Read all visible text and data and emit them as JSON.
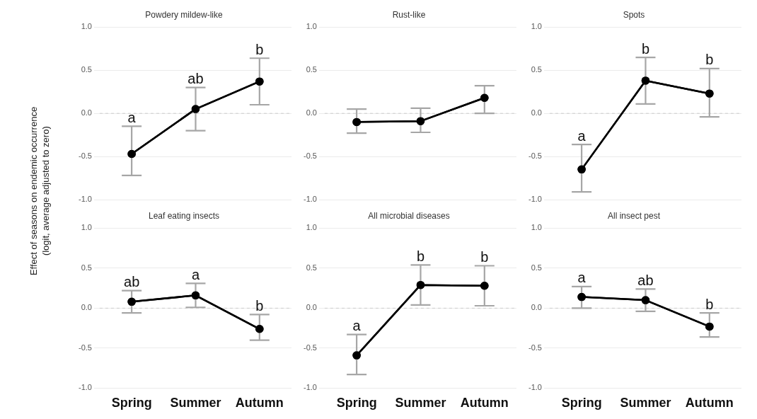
{
  "chart_data": [
    {
      "type": "line",
      "title": "Powdery mildew-like",
      "ylabel": "Effect of seasons on endemic occurrence\n(logit, average adjusted to zero)",
      "categories": [
        "Spring",
        "Summer",
        "Autumn"
      ],
      "series": [
        {
          "color": "#000000",
          "values": [
            -0.47,
            0.05,
            0.37
          ],
          "errors": [
            [
              -0.72,
              -0.15
            ],
            [
              -0.2,
              0.3
            ],
            [
              0.1,
              0.64
            ]
          ]
        }
      ],
      "ylim": [
        -1,
        1
      ],
      "yticks": [
        {
          "value": -1,
          "label": "-1.0"
        },
        {
          "value": -0.5,
          "label": "-0.5"
        },
        {
          "value": 0,
          "label": "0.0"
        },
        {
          "value": 0.5,
          "label": "0.5"
        },
        {
          "value": 1,
          "label": "1.0"
        }
      ],
      "grid": "y",
      "marker": "circle",
      "line_style": "solid",
      "tick_labels": "y",
      "ref_lines": [
        {
          "axis": "y",
          "value": 0,
          "color": "#cccccc",
          "line_style": "dashed"
        }
      ],
      "annotations": [
        {
          "text": "a",
          "x": "Spring",
          "y": -0.47
        },
        {
          "text": "ab",
          "x": "Summer",
          "y": 0.05
        },
        {
          "text": "b",
          "x": "Autumn",
          "y": 0.37
        }
      ]
    },
    {
      "type": "line",
      "title": "Rust-like",
      "categories": [
        "Spring",
        "Summer",
        "Autumn"
      ],
      "series": [
        {
          "color": "#000000",
          "values": [
            -0.1,
            -0.09,
            0.18
          ],
          "errors": [
            [
              -0.23,
              0.05
            ],
            [
              -0.22,
              0.06
            ],
            [
              0,
              0.32
            ]
          ]
        }
      ],
      "ylim": [
        -1,
        1
      ],
      "yticks": [
        {
          "value": -1,
          "label": "-1.0"
        },
        {
          "value": -0.5,
          "label": "-0.5"
        },
        {
          "value": 0,
          "label": "0.0"
        },
        {
          "value": 0.5,
          "label": "0.5"
        },
        {
          "value": 1,
          "label": "1.0"
        }
      ],
      "grid": "y",
      "marker": "circle",
      "line_style": "solid",
      "tick_labels": "y",
      "ref_lines": [
        {
          "axis": "y",
          "value": 0,
          "color": "#cccccc",
          "line_style": "dashed"
        }
      ]
    },
    {
      "type": "line",
      "title": "Spots",
      "categories": [
        "Spring",
        "Summer",
        "Autumn"
      ],
      "series": [
        {
          "color": "#000000",
          "values": [
            -0.65,
            0.38,
            0.23
          ],
          "errors": [
            [
              -0.91,
              -0.36
            ],
            [
              0.11,
              0.65
            ],
            [
              -0.04,
              0.52
            ]
          ]
        }
      ],
      "ylim": [
        -1,
        1
      ],
      "yticks": [
        {
          "value": -1,
          "label": "-1.0"
        },
        {
          "value": -0.5,
          "label": "-0.5"
        },
        {
          "value": 0,
          "label": "0.0"
        },
        {
          "value": 0.5,
          "label": "0.5"
        },
        {
          "value": 1,
          "label": "1.0"
        }
      ],
      "grid": "y",
      "marker": "circle",
      "line_style": "solid",
      "tick_labels": "y",
      "ref_lines": [
        {
          "axis": "y",
          "value": 0,
          "color": "#cccccc",
          "line_style": "dashed"
        }
      ],
      "annotations": [
        {
          "text": "a",
          "x": "Spring",
          "y": -0.65
        },
        {
          "text": "b",
          "x": "Summer",
          "y": 0.38
        },
        {
          "text": "b",
          "x": "Autumn",
          "y": 0.23
        }
      ]
    },
    {
      "type": "line",
      "title": "Leaf eating insects",
      "categories": [
        "Spring",
        "Summer",
        "Autumn"
      ],
      "series": [
        {
          "color": "#000000",
          "values": [
            0.08,
            0.16,
            -0.26
          ],
          "errors": [
            [
              -0.06,
              0.22
            ],
            [
              0.01,
              0.31
            ],
            [
              -0.4,
              -0.08
            ]
          ]
        }
      ],
      "ylim": [
        -1,
        1
      ],
      "yticks": [
        {
          "value": -1,
          "label": "-1.0"
        },
        {
          "value": -0.5,
          "label": "-0.5"
        },
        {
          "value": 0,
          "label": "0.0"
        },
        {
          "value": 0.5,
          "label": "0.5"
        },
        {
          "value": 1,
          "label": "1.0"
        }
      ],
      "grid": "y",
      "marker": "circle",
      "line_style": "solid",
      "ref_lines": [
        {
          "axis": "y",
          "value": 0,
          "color": "#cccccc",
          "line_style": "dashed"
        }
      ],
      "annotations": [
        {
          "text": "ab",
          "x": "Spring",
          "y": 0.08
        },
        {
          "text": "a",
          "x": "Summer",
          "y": 0.16
        },
        {
          "text": "b",
          "x": "Autumn",
          "y": -0.26
        }
      ]
    },
    {
      "type": "line",
      "title": "All microbial diseases",
      "categories": [
        "Spring",
        "Summer",
        "Autumn"
      ],
      "series": [
        {
          "color": "#000000",
          "values": [
            -0.59,
            0.29,
            0.28
          ],
          "errors": [
            [
              -0.83,
              -0.33
            ],
            [
              0.04,
              0.54
            ],
            [
              0.03,
              0.53
            ]
          ]
        }
      ],
      "ylim": [
        -1,
        1
      ],
      "yticks": [
        {
          "value": -1,
          "label": "-1.0"
        },
        {
          "value": -0.5,
          "label": "-0.5"
        },
        {
          "value": 0,
          "label": "0.0"
        },
        {
          "value": 0.5,
          "label": "0.5"
        },
        {
          "value": 1,
          "label": "1.0"
        }
      ],
      "grid": "y",
      "marker": "circle",
      "line_style": "solid",
      "ref_lines": [
        {
          "axis": "y",
          "value": 0,
          "color": "#cccccc",
          "line_style": "dashed"
        }
      ],
      "annotations": [
        {
          "text": "a",
          "x": "Spring",
          "y": -0.59
        },
        {
          "text": "b",
          "x": "Summer",
          "y": 0.29
        },
        {
          "text": "b",
          "x": "Autumn",
          "y": 0.28
        }
      ]
    },
    {
      "type": "line",
      "title": "All insect pest",
      "categories": [
        "Spring",
        "Summer",
        "Autumn"
      ],
      "series": [
        {
          "color": "#000000",
          "values": [
            0.14,
            0.1,
            -0.23
          ],
          "errors": [
            [
              0,
              0.27
            ],
            [
              -0.04,
              0.24
            ],
            [
              -0.36,
              -0.06
            ]
          ]
        }
      ],
      "ylim": [
        -1,
        1
      ],
      "yticks": [
        {
          "value": -1,
          "label": "-1.0"
        },
        {
          "value": -0.5,
          "label": "-0.5"
        },
        {
          "value": 0,
          "label": "0.0"
        },
        {
          "value": 0.5,
          "label": "0.5"
        },
        {
          "value": 1,
          "label": "1.0"
        }
      ],
      "grid": "y",
      "marker": "circle",
      "line_style": "solid",
      "ref_lines": [
        {
          "axis": "y",
          "value": 0,
          "color": "#cccccc",
          "line_style": "dashed"
        }
      ],
      "annotations": [
        {
          "text": "a",
          "x": "Spring",
          "y": 0.14
        },
        {
          "text": "ab",
          "x": "Summer",
          "y": 0.1
        },
        {
          "text": "b",
          "x": "Autumn",
          "y": -0.23
        }
      ]
    }
  ]
}
